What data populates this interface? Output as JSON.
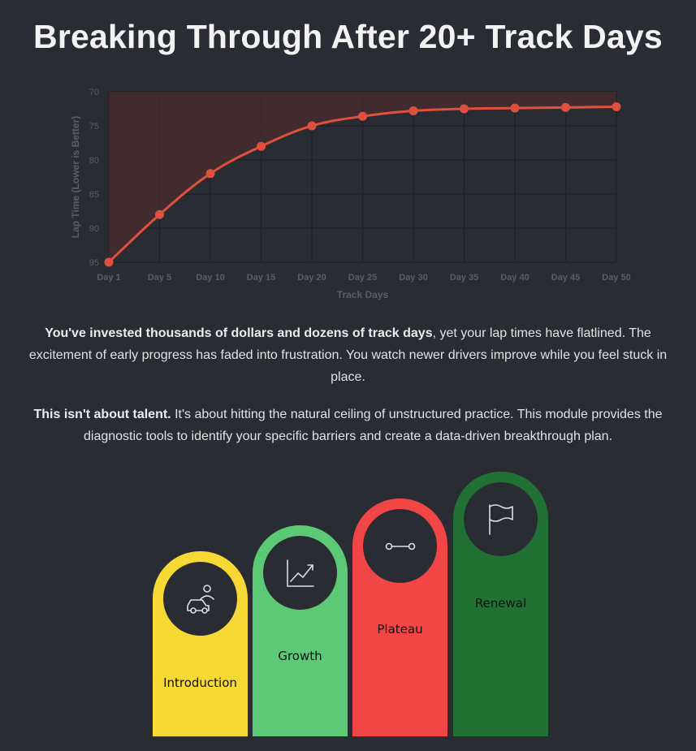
{
  "page": {
    "title": "Breaking Through After 20+ Track Days"
  },
  "chart_data": {
    "type": "line",
    "title": "",
    "xlabel": "Track Days",
    "ylabel": "Lap Time (Lower is Better)",
    "categories": [
      "Day 1",
      "Day 5",
      "Day 10",
      "Day 15",
      "Day 20",
      "Day 25",
      "Day 30",
      "Day 35",
      "Day 40",
      "Day 45",
      "Day 50"
    ],
    "series": [
      {
        "values": [
          95,
          88,
          82,
          78,
          75,
          73.6,
          72.8,
          72.5,
          72.4,
          72.3,
          72.2
        ]
      }
    ],
    "yticks": [
      "70",
      "75",
      "80",
      "85",
      "90",
      "95"
    ],
    "ylim": [
      95,
      70
    ],
    "y_reversed": true,
    "grid": true,
    "line_color": "#e0503f",
    "fill_color": "#4a2b2d"
  },
  "paragraphs": {
    "p1_bold": "You've invested thousands of dollars and dozens of track days",
    "p1_rest": ", yet your lap times have flatlined. The excitement of early progress has faded into frustration. You watch newer drivers improve while you feel stuck in place.",
    "p2_bold": "This isn't about talent.",
    "p2_rest": " It's about hitting the natural ceiling of unstructured practice. This module provides the diagnostic tools to identify your specific barriers and create a data-driven breakthrough plan."
  },
  "stages": [
    {
      "label": "Introduction",
      "color": "#f7d935",
      "icon": "car-driver-icon"
    },
    {
      "label": "Growth",
      "color": "#5cc977",
      "icon": "trend-up-icon"
    },
    {
      "label": "Plateau",
      "color": "#f24545",
      "icon": "flat-line-icon"
    },
    {
      "label": "Renewal",
      "color": "#217135",
      "icon": "flag-icon"
    }
  ]
}
